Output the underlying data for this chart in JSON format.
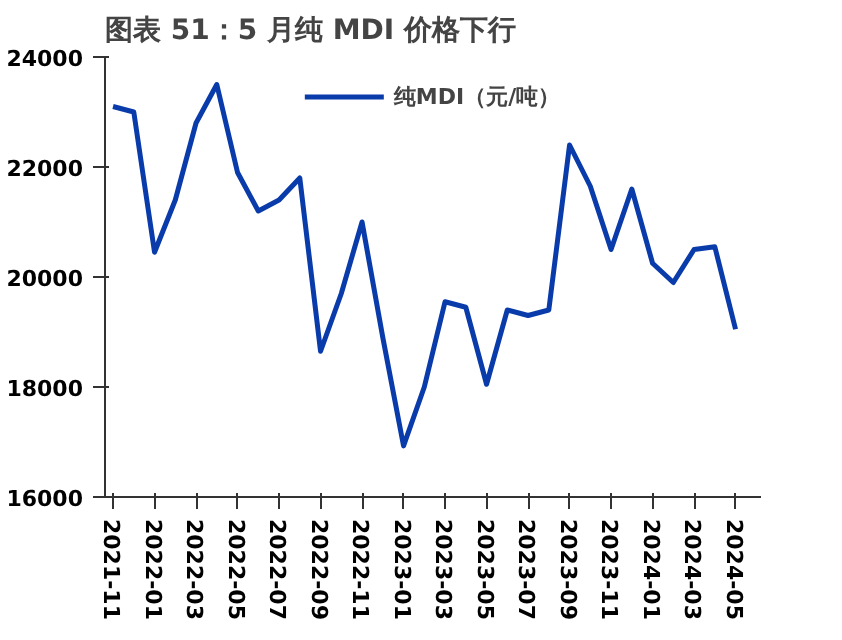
{
  "chart_data": {
    "type": "line",
    "title": "图表 51：5 月纯 MDI 价格下行",
    "x": [
      "2021-11",
      "2021-12",
      "2022-01",
      "2022-02",
      "2022-03",
      "2022-04",
      "2022-05",
      "2022-06",
      "2022-07",
      "2022-08",
      "2022-09",
      "2022-10",
      "2022-11",
      "2022-12",
      "2023-01",
      "2023-02",
      "2023-03",
      "2023-04",
      "2023-05",
      "2023-06",
      "2023-07",
      "2023-08",
      "2023-09",
      "2023-10",
      "2023-11",
      "2023-12",
      "2024-01",
      "2024-02",
      "2024-03",
      "2024-04",
      "2024-05"
    ],
    "series": [
      {
        "name": "纯MDI（元/吨）",
        "color": "#0a3bab",
        "values": [
          23100,
          23000,
          20450,
          21400,
          22800,
          23500,
          21900,
          21200,
          21400,
          21800,
          18650,
          19700,
          21000,
          18900,
          16930,
          18000,
          19550,
          19450,
          18050,
          19400,
          19300,
          19400,
          22400,
          21650,
          20500,
          21600,
          20250,
          19900,
          20500,
          20550,
          19050
        ]
      }
    ],
    "xlim": [
      "2021-10-20",
      "2024-06-08"
    ],
    "xticks": [
      "2021-11",
      "2022-01",
      "2022-03",
      "2022-05",
      "2022-07",
      "2022-09",
      "2022-11",
      "2023-01",
      "2023-03",
      "2023-05",
      "2023-07",
      "2023-09",
      "2023-11",
      "2024-01",
      "2024-03",
      "2024-05"
    ],
    "ylim": [
      16000,
      24000
    ],
    "yticks": [
      16000,
      18000,
      20000,
      22000,
      24000
    ],
    "grid": false,
    "legend": "top",
    "marker": "none",
    "line_style": "solid"
  }
}
